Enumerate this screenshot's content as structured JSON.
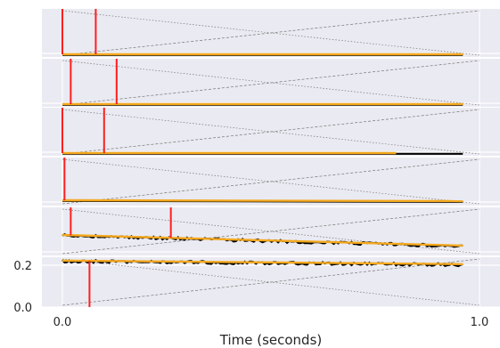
{
  "chart_data": {
    "type": "line",
    "title": "",
    "xlabel": "Time (seconds)",
    "ylabel": "",
    "xlim": [
      -0.05,
      1.0
    ],
    "ylim": [
      0.0,
      0.3
    ],
    "x_ticks": [
      {
        "value": 0.0,
        "label": "0.0"
      },
      {
        "value": 1.0,
        "label": "1.0"
      }
    ],
    "y_ticks": [
      {
        "value": 0.0,
        "label": "0.0"
      },
      {
        "value": 0.2,
        "label": "0.2"
      }
    ],
    "grid": true,
    "background": "#eaeaf2",
    "colors": {
      "trace": "#000000",
      "fit": "#f4a81d",
      "event": "#ff1f1f",
      "guide": "#777777"
    },
    "series": [
      {
        "x_end": 0.96,
        "level": 0.2,
        "events": [
          0.0,
          0.08
        ],
        "noisy": false
      },
      {
        "x_end": 0.96,
        "level": 0.2,
        "events": [
          0.02,
          0.13
        ],
        "noisy": false
      },
      {
        "x_end": 0.96,
        "level": 0.2,
        "events": [
          0.0,
          0.1
        ],
        "noisy": false,
        "fit_end": 0.8
      },
      {
        "x_end": 0.96,
        "level": 0.2,
        "events": [
          0.005
        ],
        "noisy": false
      },
      {
        "x_end": 0.96,
        "level_start": 0.24,
        "level_end": 0.2,
        "events": [
          0.02,
          0.26
        ],
        "noisy": true
      },
      {
        "x_end": 0.96,
        "level_start": 0.222,
        "level_end": 0.205,
        "events": [
          0.065
        ],
        "noisy": true
      }
    ]
  }
}
